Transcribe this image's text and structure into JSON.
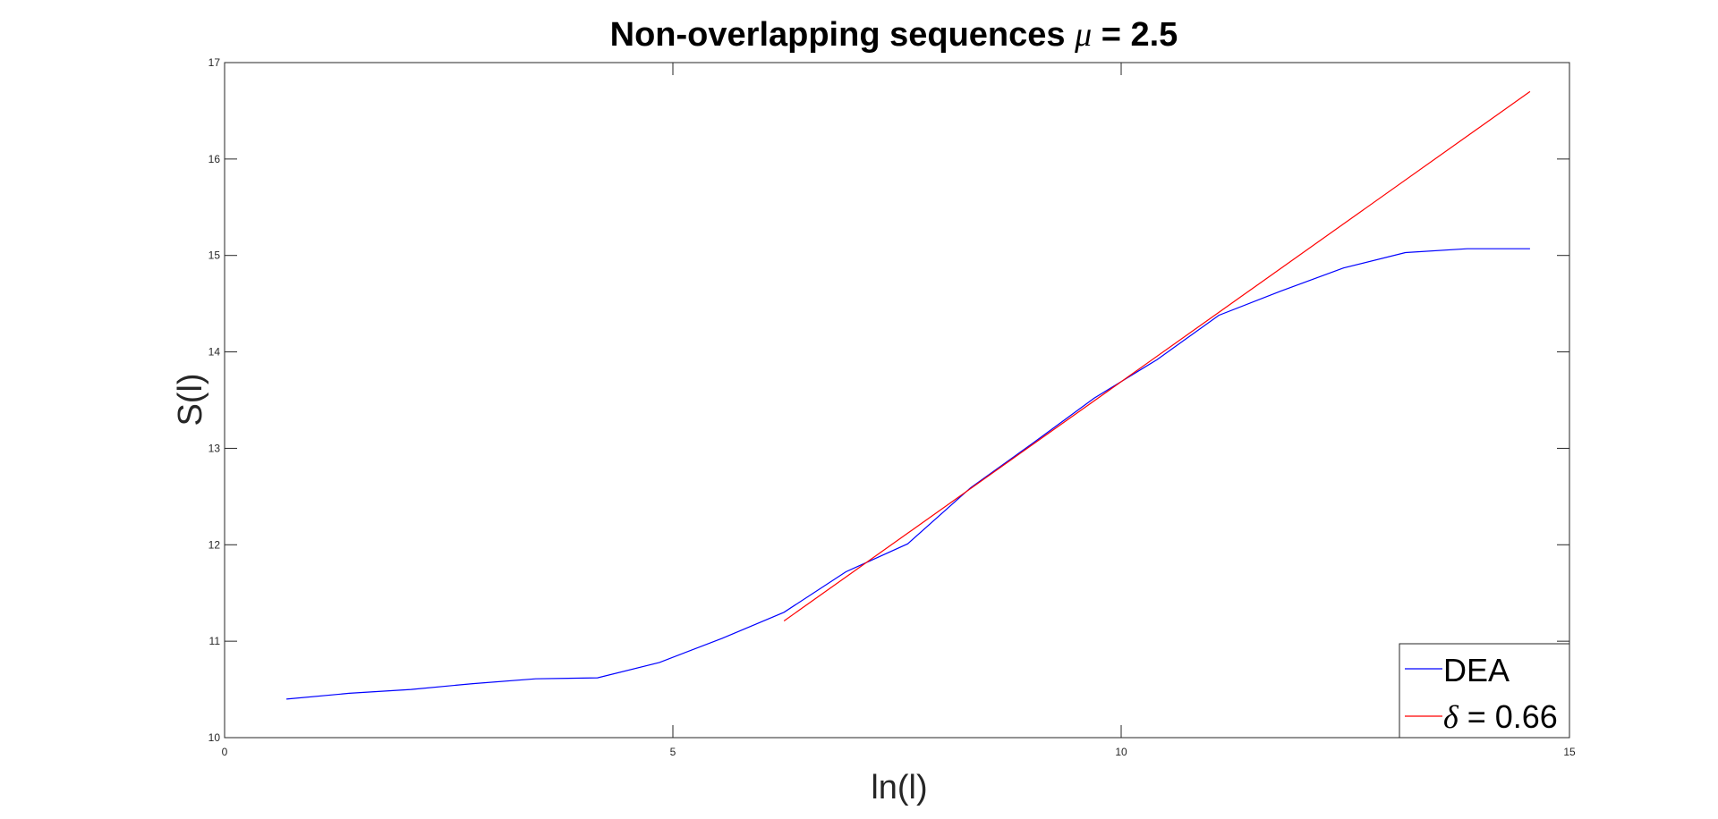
{
  "chart_data": {
    "type": "line",
    "title_text": "Non-overlapping sequences ",
    "title_symbol": "μ",
    "title_suffix": " = 2.5",
    "xlabel": "ln(l)",
    "ylabel": "S(l)",
    "xlim": [
      0,
      15
    ],
    "ylim": [
      10,
      17
    ],
    "xticks": [
      0,
      5,
      10,
      15
    ],
    "yticks": [
      10,
      11,
      12,
      13,
      14,
      15,
      16,
      17
    ],
    "xtick_labels": [
      "0",
      "5",
      "10",
      "15"
    ],
    "ytick_labels": [
      "10",
      "11",
      "12",
      "13",
      "14",
      "15",
      "16",
      "17"
    ],
    "grid": false,
    "legend_position": "bottom-right",
    "series": [
      {
        "name": "DEA",
        "color": "#0000ff",
        "x": [
          0.69,
          1.39,
          2.08,
          2.77,
          3.47,
          4.16,
          4.85,
          5.55,
          6.24,
          6.93,
          7.62,
          8.32,
          9.01,
          9.7,
          10.4,
          11.09,
          11.78,
          12.48,
          13.17,
          13.86,
          14.56
        ],
        "y": [
          10.4,
          10.46,
          10.5,
          10.56,
          10.61,
          10.62,
          10.78,
          11.03,
          11.3,
          11.72,
          12.01,
          12.59,
          13.05,
          13.52,
          13.92,
          14.38,
          14.63,
          14.87,
          15.03,
          15.07,
          15.07
        ]
      },
      {
        "name": "= 0.66",
        "name_symbol": "δ",
        "color": "#ff0000",
        "x": [
          6.24,
          14.56
        ],
        "y": [
          11.21,
          16.7
        ]
      }
    ]
  }
}
